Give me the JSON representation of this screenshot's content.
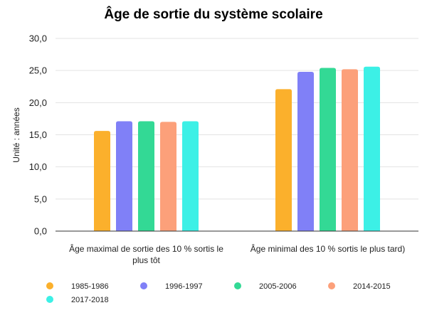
{
  "chart_data": {
    "type": "bar",
    "title": "Âge de sortie du système scolaire",
    "ylabel": "Unité : années",
    "xlabel": "",
    "ylim": [
      0,
      30
    ],
    "yticks": [
      "0,0",
      "5,0",
      "10,0",
      "15,0",
      "20,0",
      "25,0",
      "30,0"
    ],
    "grid": true,
    "legend_position": "bottom",
    "categories": [
      [
        "Âge maximal de sortie des 10 % sortis le",
        "plus tôt"
      ],
      [
        "Âge minimal des 10 % sortis le plus tard)"
      ]
    ],
    "series": [
      {
        "name": "1985-1986",
        "color": "#FBB02C",
        "values": [
          15.6,
          22.1
        ]
      },
      {
        "name": "1996-1997",
        "color": "#8080F7",
        "values": [
          17.1,
          24.8
        ]
      },
      {
        "name": "2005-2006",
        "color": "#33D995",
        "values": [
          17.1,
          25.4
        ]
      },
      {
        "name": "2014-2015",
        "color": "#FCA07A",
        "values": [
          17.0,
          25.2
        ]
      },
      {
        "name": "2017-2018",
        "color": "#3CF0E6",
        "values": [
          17.1,
          25.6
        ]
      }
    ]
  }
}
